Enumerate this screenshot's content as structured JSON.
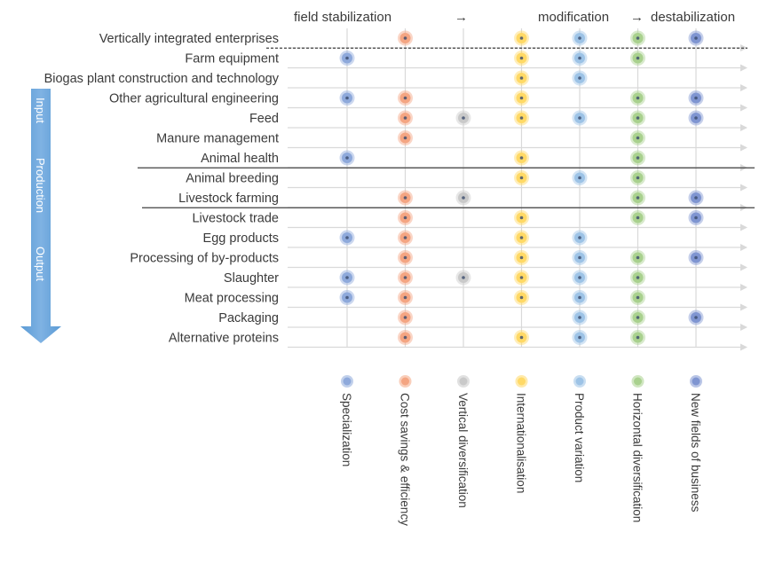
{
  "header": {
    "stage1": "field stabilization",
    "arrow1": "→",
    "stage2": "modification",
    "arrow2": "→",
    "stage3": "destabilization"
  },
  "value_chain_arrow": {
    "labels": [
      "Input",
      "Production",
      "Output"
    ]
  },
  "chart_data": {
    "type": "table",
    "rows": [
      "Vertically integrated enterprises",
      "Farm equipment",
      "Biogas plant construction and technology",
      "Other agricultural engineering",
      "Feed",
      "Manure management",
      "Animal health",
      "Animal breeding",
      "Livestock farming",
      "Livestock trade",
      "Egg products",
      "Processing of by-products",
      "Slaughter",
      "Meat processing",
      "Packaging",
      "Alternative proteins"
    ],
    "columns": [
      {
        "name": "Specialization",
        "color": "#8ea9db"
      },
      {
        "name": "Cost savings & efficiency",
        "color": "#f4a582"
      },
      {
        "name": "Vertical diversification",
        "color": "#c9c9c9"
      },
      {
        "name": "Internationalisation",
        "color": "#ffd966"
      },
      {
        "name": "Product variation",
        "color": "#9dc3e6"
      },
      {
        "name": "Horizontal diversification",
        "color": "#a9d18e"
      },
      {
        "name": "New fields of business",
        "color": "#7f95d1"
      }
    ],
    "cells": [
      [
        0,
        1,
        0,
        1,
        1,
        1,
        1
      ],
      [
        1,
        0,
        0,
        1,
        1,
        1,
        0
      ],
      [
        0,
        0,
        0,
        1,
        1,
        0,
        0
      ],
      [
        1,
        1,
        0,
        1,
        0,
        1,
        1
      ],
      [
        0,
        1,
        1,
        1,
        1,
        1,
        1
      ],
      [
        0,
        1,
        0,
        0,
        0,
        1,
        0
      ],
      [
        1,
        0,
        0,
        1,
        0,
        1,
        0
      ],
      [
        0,
        0,
        0,
        1,
        1,
        1,
        0
      ],
      [
        0,
        1,
        1,
        0,
        0,
        1,
        1
      ],
      [
        0,
        1,
        0,
        1,
        0,
        1,
        1
      ],
      [
        1,
        1,
        0,
        1,
        1,
        0,
        0
      ],
      [
        0,
        1,
        0,
        1,
        1,
        1,
        1
      ],
      [
        1,
        1,
        1,
        1,
        1,
        1,
        0
      ],
      [
        1,
        1,
        0,
        1,
        1,
        1,
        0
      ],
      [
        0,
        1,
        0,
        0,
        1,
        1,
        1
      ],
      [
        0,
        1,
        0,
        1,
        1,
        1,
        0
      ]
    ]
  }
}
